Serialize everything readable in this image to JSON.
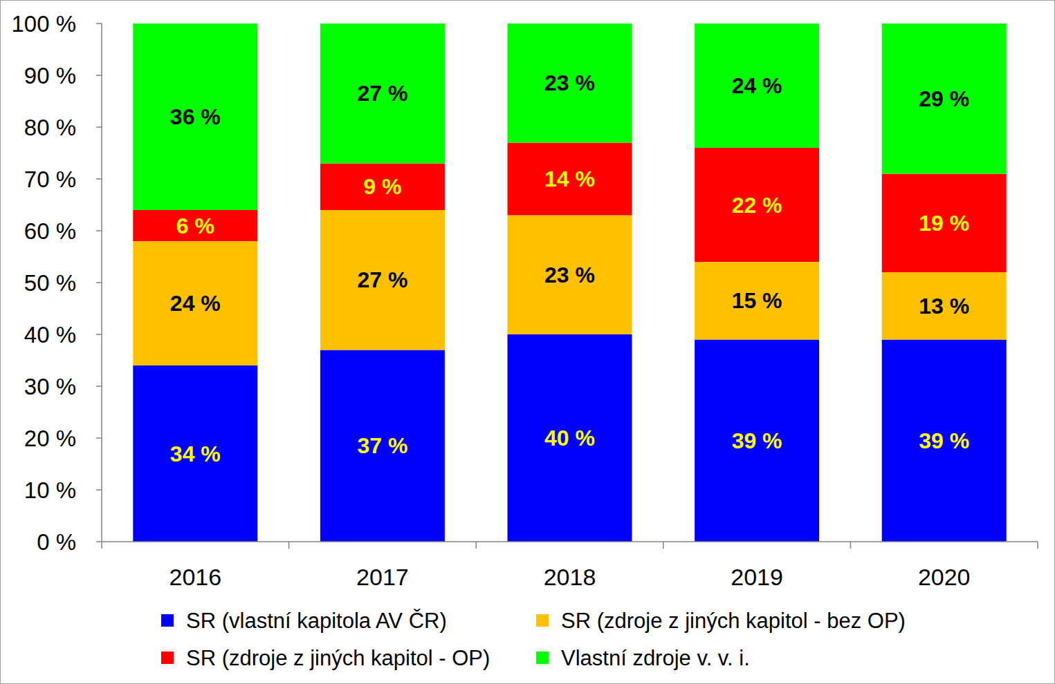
{
  "chart_data": {
    "type": "bar",
    "stacked": true,
    "data_labels": true,
    "grid": false,
    "legend": "bottom",
    "categories": [
      "2016",
      "2017",
      "2018",
      "2019",
      "2020"
    ],
    "ylim": [
      0,
      100
    ],
    "yticks": [
      {
        "value": 0,
        "label": "0 %"
      },
      {
        "value": 10,
        "label": "10 %"
      },
      {
        "value": 20,
        "label": "20 %"
      },
      {
        "value": 30,
        "label": "30 %"
      },
      {
        "value": 40,
        "label": "40 %"
      },
      {
        "value": 50,
        "label": "50 %"
      },
      {
        "value": 60,
        "label": "60 %"
      },
      {
        "value": 70,
        "label": "70 %"
      },
      {
        "value": 80,
        "label": "80 %"
      },
      {
        "value": 90,
        "label": "90 %"
      },
      {
        "value": 100,
        "label": "100 %"
      }
    ],
    "series": [
      {
        "name": "SR (vlastní kapitola AV ČR)",
        "color": "#0000ff",
        "values": [
          34,
          37,
          40,
          39,
          39
        ],
        "value_labels": [
          "34 %",
          "37 %",
          "40 %",
          "39 %",
          "39 %"
        ]
      },
      {
        "name": "SR (zdroje z jiných kapitol - bez OP)",
        "color": "#ffc000",
        "values": [
          24,
          27,
          23,
          15,
          13
        ],
        "value_labels": [
          "24 %",
          "27 %",
          "23 %",
          "15 %",
          "13 %"
        ]
      },
      {
        "name": "SR (zdroje z jiných kapitol - OP)",
        "color": "#ff0000",
        "values": [
          6,
          9,
          14,
          22,
          19
        ],
        "value_labels": [
          "6 %",
          "9 %",
          "14 %",
          "22 %",
          "19 %"
        ]
      },
      {
        "name": "Vlastní zdroje v. v. i.",
        "color": "#00ff00",
        "values": [
          36,
          27,
          23,
          24,
          29
        ],
        "value_labels": [
          "36 %",
          "27 %",
          "23 %",
          "24 %",
          "29 %"
        ]
      }
    ]
  }
}
